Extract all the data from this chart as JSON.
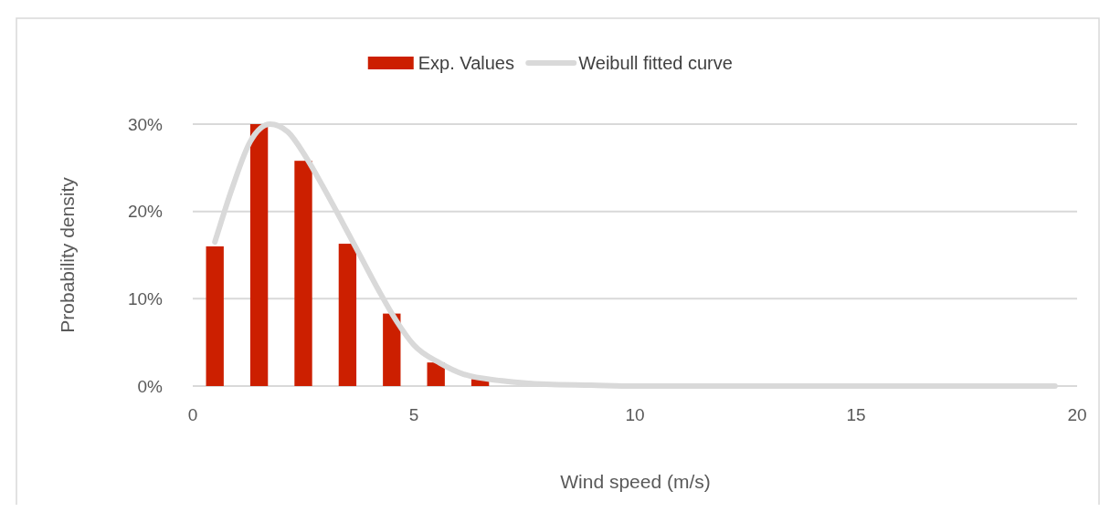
{
  "chart_data": {
    "type": "bar",
    "xlabel": "Wind speed (m/s)",
    "ylabel": "Probability density",
    "xlim": [
      0,
      20
    ],
    "xticks": [
      0,
      5,
      10,
      15,
      20
    ],
    "ylim": [
      0,
      30
    ],
    "yticks": [
      {
        "value": 0,
        "label": "0%"
      },
      {
        "value": 10,
        "label": "10%"
      },
      {
        "value": 20,
        "label": "20%"
      },
      {
        "value": 30,
        "label": "30%"
      }
    ],
    "grid": "y",
    "legend": "top",
    "series": [
      {
        "name": "Exp. Values",
        "color": "#cc1f00",
        "x": [
          0.5,
          1.5,
          2.5,
          3.5,
          4.5,
          5.5,
          6.5,
          7.5,
          8.5,
          9.5,
          10.5,
          11.5,
          12.5,
          13.5,
          14.5,
          15.5,
          16.5,
          17.5,
          18.5,
          19.5
        ],
        "values": [
          16.0,
          30.0,
          25.8,
          16.3,
          8.3,
          2.7,
          0.8,
          null,
          0,
          0,
          0,
          0,
          0,
          0,
          0,
          0,
          0,
          0,
          0,
          0
        ]
      },
      {
        "name": "Weibull fitted curve",
        "type": "line",
        "color": "#d9d9d9",
        "x": [
          0.5,
          0.9,
          1.3,
          1.75,
          2.15,
          2.55,
          2.95,
          3.4,
          3.8,
          4.2,
          4.6,
          5.0,
          5.6,
          6.1,
          7.0,
          8.0,
          9.0,
          10.0,
          12.0,
          15.0,
          19.5
        ],
        "values": [
          16.5,
          22.8,
          28.0,
          30,
          29.1,
          26.3,
          22.8,
          18.6,
          14.8,
          11.0,
          7.5,
          4.7,
          2.6,
          1.4,
          0.6,
          0.2,
          0.1,
          0,
          0,
          0,
          0
        ]
      }
    ]
  }
}
